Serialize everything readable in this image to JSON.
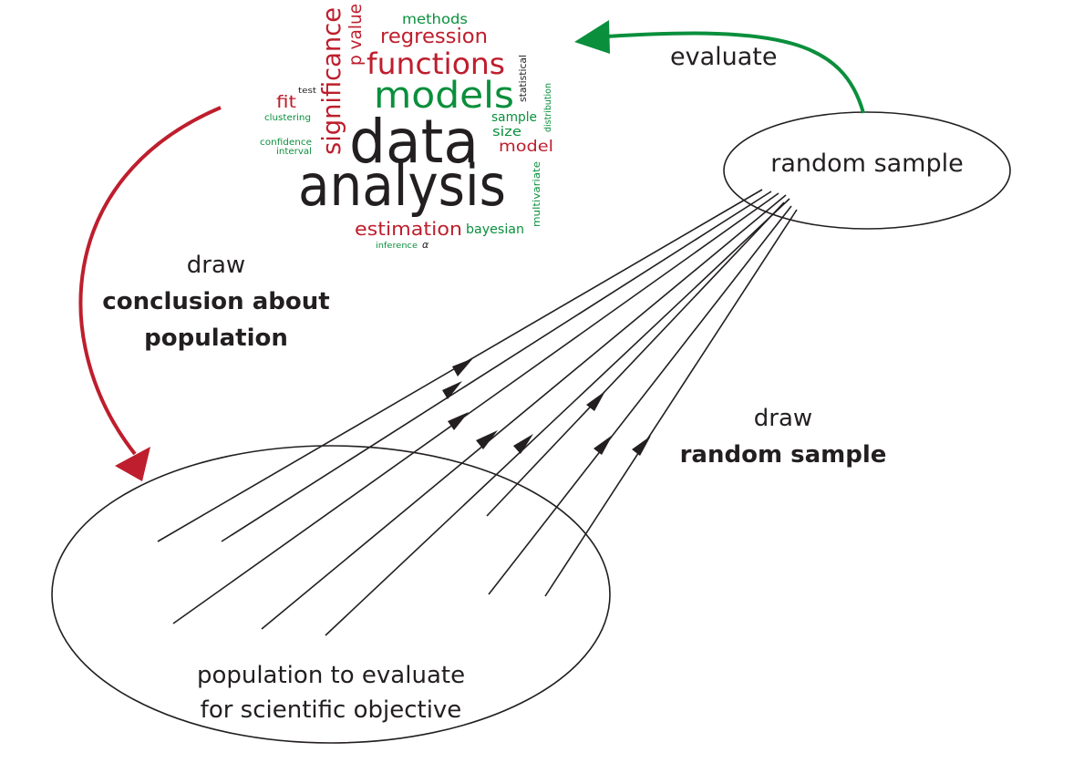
{
  "colors": {
    "red": "#be1e2d",
    "green": "#0a8f3c",
    "dark": "#231f20"
  },
  "labels": {
    "random_sample": "random sample",
    "evaluate": "evaluate",
    "draw_left": "draw",
    "conclusion_line1": "conclusion about",
    "conclusion_line2": "population",
    "draw_right": "draw",
    "random_sample_bold": "random sample",
    "population_line1": "population to evaluate",
    "population_line2": "for scientific objective"
  },
  "wordcloud": {
    "data": "data",
    "analysis": "analysis",
    "models": "models",
    "functions": "functions",
    "regression": "regression",
    "methods": "methods",
    "significance": "significance",
    "p_value": "p value",
    "statistical": "statistical",
    "distribution": "distribution",
    "sample": "sample",
    "size": "size",
    "model": "model",
    "multivariate": "multivariate",
    "estimation": "estimation",
    "bayesian": "bayesian",
    "inference": "inference",
    "alpha": "α",
    "fit": "fit",
    "test": "test",
    "clustering": "clustering",
    "confidence": "confidence",
    "interval": "interval"
  }
}
